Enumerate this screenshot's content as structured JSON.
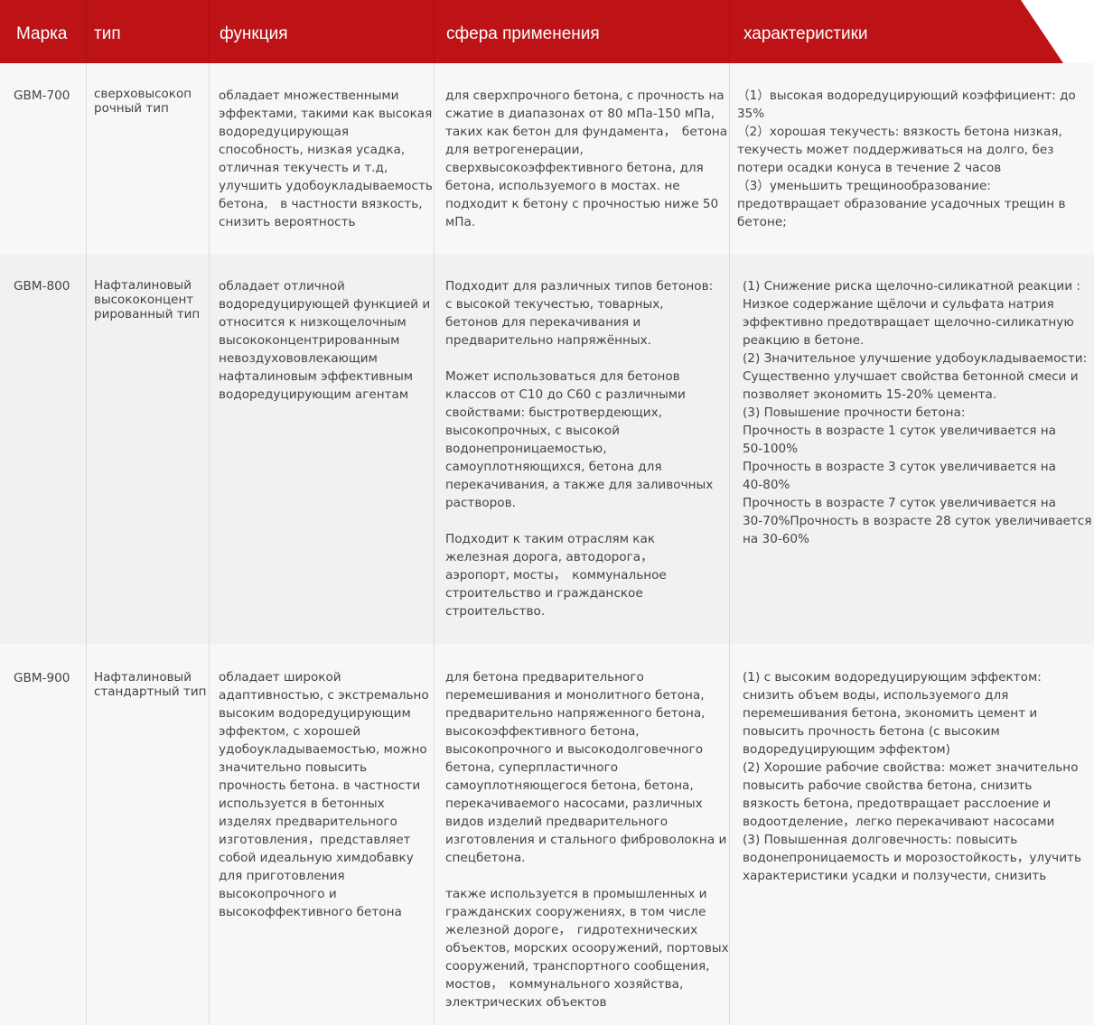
{
  "header": {
    "columns": [
      "Марка",
      "тип",
      "функция",
      "сфера применения",
      "характеристики"
    ],
    "color": "#be1316"
  },
  "rows": [
    {
      "mark": "GBM-700",
      "type": "сверховысокоп\nрочный тип",
      "function": "обладает множественными\nэффектами, такими как высокая\nводоредуцирующая\nспособность, низкая усадка,\nотличная текучесть и т.д,\nулучшить удобоукладываемость\nбетона,　в частности вязкость,\nснизить вероятность",
      "application": "для сверхпрочного бетона, с прочность на\nсжатие в диапазонах от 80 мПа-150 мПа,\nтаких как бетон для фундамента，　бетона\nдля ветрогенерации,\nсверхвысокоэффективного бетона, для\nбетона, используемого в мостах. не\nподходит к бетону с прочностью ниже 50\nмПа.",
      "characteristics": "（1）высокая водоредуцирующий коэффициент: до\n35%\n（2）хорошая текучесть: вязкость бетона низкая,\nтекучесть может поддерживаться на долго, без\nпотери осадки конуса в течение 2 часов\n（3）уменьшить трещинообразование:\nпредотвращает образование усадочных трещин в\nбетоне;"
    },
    {
      "mark": "GBM-800",
      "type": "Нафталиновый\nвысококонцент\nрированный тип",
      "function": "обладает отличной\nводоредуцирующей функцией и\nотносится к низкощелочным\nвысококонцентрированным\nневоздухововлекающим\nнафталиновым эффективным\nводоредуцирующим агентам",
      "application": "Подходит для различных типов бетонов:\nс высокой текучестью, товарных,\nбетонов для перекачивания и\nпредварительно напряжённых.\n\nМожет использоваться для бетонов\nклассов от C10 до C60 с различными\nсвойствами: быстротвердеющих,\nвысокопрочных, с высокой\nводонепроницаемостью,\nсамоуплотняющихся, бетона для\nперекачивания, а также для заливочных\nрастворов.\n\nПодходит к таким отраслям как\nжелезная дорога, автодорога，\nаэропорт, мосты，　коммунальное\nстроительство и гражданское\nстроительство.",
      "characteristics": "(1) Снижение риска щелочно-силикатной реакции :\nНизкое содержание щёлочи и сульфата натрия\nэффективно предотвращает щелочно-силикатную\nреакцию в бетоне.\n(2) Значительное улучшение удобоукладываемости:\nСущественно улучшает свойства бетонной смеси и\nпозволяет экономить 15-20% цемента.\n(3) Повышение прочности бетона:\nПрочность в возрасте 1 суток увеличивается на\n50-100%\nПрочность в возрасте 3 суток увеличивается на\n40-80%\nПрочность в возрасте 7 суток увеличивается на\n30-70%Прочность в возрасте 28 суток увеличивается\nна 30-60%"
    },
    {
      "mark": "GBM-900",
      "type": "Нафталиновый\nстандартный тип",
      "function": "обладает широкой\nадаптивностью, с  экстремально\nвысоким водоредуцирующим\nэффектом, с хорошей\nудобоукладываемостью, можно\nзначительно повысить\nпрочность бетона. в частности\nиспользуется в  бетонных\nизделях предварительного\nизготовления，представляет\nсобой идеальную химдобавку\nдля приготовления\nвысокопрочного и\nвысокоффективного бетона",
      "application": "для бетона предварительного\nперемешивания и монолитного бетона,\nпредварительно напряженного бетона,\nвысокоэффективного бетона,\nвысокопрочного и высокодолговечного\nбетона, суперпластичного\nсамоуплотняющегося бетона, бетона,\nперекачиваемого насосами, различных\nвидов  изделий предварительного\nизготовления и стального фиброволокна и\nспецбетона.\n\nтакже используется в промышленных и\nгражданских сооружениях, в том числе\nжелезной дороге，　гидротехнических\nобъектов, морских осооружений, портовых\nсооружений, транспортного сообщения,\nмостов，　коммунального хозяйства,\nэлектрических объектов",
      "characteristics": "(1)  с высоким водоредуцирующим эффектом:\nснизить объем воды, используемого для\nперемешивания бетона, экономить цемент и\nповысить прочность бетона (с высоким\nводоредуцирующим эффектом)\n(2)  Хорошие рабочие свойства: может значительно\nповысить рабочие свойства бетона, снизить\nвязкость бетона, предотвращает расслоение и\nводоотделение，легко перекачивают насосами\n(3) Повышенная долговечность: повысить\nводонепроницаемость и морозостойкость，улучить\nхарактеристики усадки и ползучести, снизить"
    }
  ]
}
